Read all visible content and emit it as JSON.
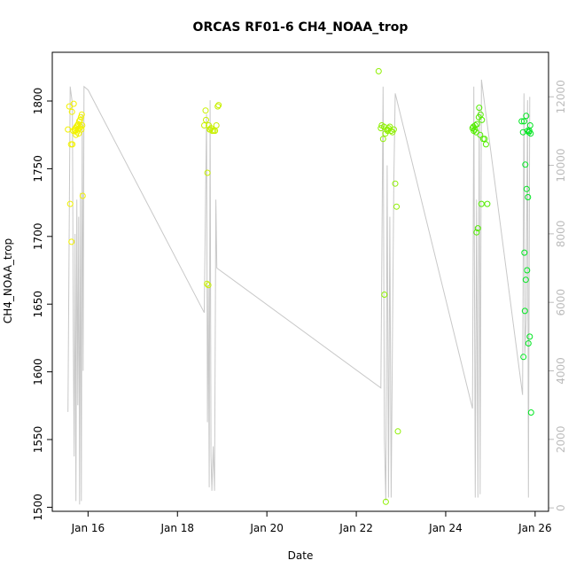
{
  "chart_data": {
    "type": "scatter",
    "title": "ORCAS RF01-6 CH4_NOAA_trop",
    "xlabel": "Date",
    "ylabel": "CH4_NOAA_trop",
    "x_unit": "days since Jan 16",
    "xlim": [
      -0.8,
      10.3
    ],
    "ylim": [
      1497,
      1836
    ],
    "y_ticks": [
      1500,
      1550,
      1600,
      1650,
      1700,
      1750,
      1800
    ],
    "x_ticks": [
      {
        "value": 0,
        "label": "Jan 16"
      },
      {
        "value": 2,
        "label": "Jan 18"
      },
      {
        "value": 4,
        "label": "Jan 20"
      },
      {
        "value": 6,
        "label": "Jan 22"
      },
      {
        "value": 8,
        "label": "Jan 24"
      },
      {
        "value": 10,
        "label": "Jan 26"
      }
    ],
    "right_axis": {
      "label": "",
      "lim": [
        -100,
        13300
      ],
      "ticks": [
        0,
        2000,
        4000,
        6000,
        8000,
        10000,
        12000
      ],
      "color": "#bbbbbb"
    },
    "grid": false,
    "altitude_track": {
      "color": "#c8c8c8",
      "points": [
        [
          -0.45,
          2800
        ],
        [
          -0.4,
          12300
        ],
        [
          -0.35,
          11800
        ],
        [
          -0.33,
          5000
        ],
        [
          -0.31,
          1500
        ],
        [
          -0.29,
          8000
        ],
        [
          -0.27,
          200
        ],
        [
          -0.25,
          9000
        ],
        [
          -0.23,
          3000
        ],
        [
          -0.21,
          8500
        ],
        [
          -0.19,
          100
        ],
        [
          -0.17,
          9200
        ],
        [
          -0.15,
          200
        ],
        [
          -0.13,
          11500
        ],
        [
          -0.11,
          4000
        ],
        [
          -0.09,
          12300
        ],
        [
          0.0,
          12200
        ],
        [
          2.6,
          5700
        ],
        [
          2.65,
          11500
        ],
        [
          2.67,
          2500
        ],
        [
          2.69,
          6500
        ],
        [
          2.71,
          600
        ],
        [
          2.73,
          11900
        ],
        [
          2.75,
          1500
        ],
        [
          2.77,
          500
        ],
        [
          2.8,
          1800
        ],
        [
          2.83,
          500
        ],
        [
          2.86,
          9000
        ],
        [
          2.88,
          7000
        ],
        [
          6.55,
          3500
        ],
        [
          6.6,
          12300
        ],
        [
          6.63,
          2000
        ],
        [
          6.66,
          200
        ],
        [
          6.69,
          10000
        ],
        [
          6.72,
          300
        ],
        [
          6.75,
          8500
        ],
        [
          6.78,
          300
        ],
        [
          6.81,
          5000
        ],
        [
          6.84,
          9500
        ],
        [
          6.87,
          12100
        ],
        [
          8.6,
          2900
        ],
        [
          8.63,
          12300
        ],
        [
          8.66,
          300
        ],
        [
          8.69,
          9000
        ],
        [
          8.72,
          300
        ],
        [
          8.75,
          11700
        ],
        [
          8.77,
          400
        ],
        [
          8.8,
          12500
        ],
        [
          9.72,
          3300
        ],
        [
          9.75,
          12100
        ],
        [
          9.77,
          4500
        ],
        [
          9.8,
          5500
        ],
        [
          9.83,
          11900
        ],
        [
          9.85,
          300
        ],
        [
          9.88,
          12000
        ]
      ]
    },
    "series": [
      {
        "color": "#f2f200",
        "x": [
          -0.45,
          -0.42,
          -0.38,
          -0.35,
          -0.33,
          -0.3,
          -0.28,
          -0.26,
          -0.24,
          -0.22,
          -0.2,
          -0.18,
          -0.16,
          -0.14,
          -0.32,
          -0.27,
          -0.21,
          -0.15,
          -0.4,
          -0.37,
          -0.12,
          -0.36,
          -0.29,
          -0.25,
          -0.23,
          -0.19,
          -0.17,
          -0.13
        ],
        "y": [
          1779,
          1796,
          1768,
          1768,
          1778,
          1779,
          1780,
          1781,
          1782,
          1783,
          1785,
          1786,
          1788,
          1790,
          1798,
          1775,
          1776,
          1779,
          1724,
          1696,
          1730,
          1792,
          1778,
          1777,
          1779,
          1780,
          1781,
          1782
        ]
      },
      {
        "color": "#c8f000",
        "x": [
          2.6,
          2.63,
          2.66,
          2.69,
          2.72,
          2.75,
          2.78,
          2.81,
          2.84,
          2.87,
          2.9,
          2.64,
          2.67,
          2.7,
          2.92,
          2.73
        ],
        "y": [
          1782,
          1793,
          1665,
          1664,
          1779,
          1780,
          1778,
          1778,
          1778,
          1782,
          1796,
          1786,
          1747,
          1782,
          1797,
          1779
        ]
      },
      {
        "color": "#8ef000",
        "x": [
          6.5,
          6.55,
          6.6,
          6.63,
          6.66,
          6.69,
          6.72,
          6.75,
          6.78,
          6.81,
          6.84,
          6.87,
          6.9,
          6.65,
          6.7,
          6.57,
          6.62,
          6.93
        ],
        "y": [
          1822,
          1780,
          1772,
          1657,
          1504,
          1779,
          1780,
          1781,
          1778,
          1777,
          1779,
          1739,
          1722,
          1776,
          1778,
          1782,
          1781,
          1556
        ]
      },
      {
        "color": "#52ec00",
        "x": [
          8.6,
          8.63,
          8.66,
          8.69,
          8.72,
          8.75,
          8.78,
          8.81,
          8.84,
          8.87,
          8.9,
          8.93,
          8.7,
          8.74,
          8.77,
          8.8,
          8.62,
          8.65,
          8.68
        ],
        "y": [
          1780,
          1778,
          1782,
          1703,
          1706,
          1795,
          1790,
          1786,
          1772,
          1772,
          1768,
          1724,
          1783,
          1788,
          1775,
          1724,
          1781,
          1779,
          1777
        ]
      },
      {
        "color": "#00e620",
        "x": [
          9.7,
          9.73,
          9.76,
          9.79,
          9.82,
          9.85,
          9.88,
          9.91,
          9.74,
          9.77,
          9.8,
          9.83,
          9.86,
          9.89,
          9.75,
          9.78,
          9.81,
          9.84,
          9.87,
          9.9
        ],
        "y": [
          1785,
          1777,
          1688,
          1668,
          1675,
          1621,
          1626,
          1570,
          1611,
          1645,
          1789,
          1778,
          1777,
          1782,
          1785,
          1753,
          1735,
          1729,
          1778,
          1776
        ]
      }
    ]
  }
}
